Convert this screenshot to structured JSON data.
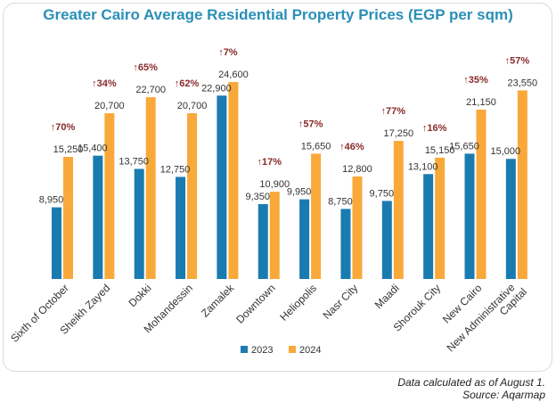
{
  "chart_data": {
    "type": "bar",
    "title": "Greater Cairo Average Residential Property Prices (EGP per sqm)",
    "categories": [
      "Sixth of October",
      "Sheikh Zayed",
      "Dokki",
      "Mohandessin",
      "Zamalek",
      "Downtown",
      "Heliopolis",
      "Nasr City",
      "Maadi",
      "Shorouk City",
      "New Cairo",
      "New Administrative Capital"
    ],
    "series": [
      {
        "name": "2023",
        "color": "#1a7bb0",
        "values": [
          8950,
          15400,
          13750,
          12750,
          22900,
          9350,
          9950,
          8750,
          9750,
          13100,
          15650,
          15000
        ]
      },
      {
        "name": "2024",
        "color": "#f9a93a",
        "values": [
          15250,
          20700,
          22700,
          20700,
          24600,
          10900,
          15650,
          12800,
          17250,
          15150,
          21150,
          23550
        ]
      }
    ],
    "value_labels": {
      "2023": [
        "8,950",
        "15,400",
        "13,750",
        "12,750",
        "22,900",
        "9,350",
        "9,950",
        "8,750",
        "9,750",
        "13,100",
        "15,650",
        "15,000"
      ],
      "2024": [
        "15,250",
        "20,700",
        "22,700",
        "20,700",
        "24,600",
        "10,900",
        "15,650",
        "12,800",
        "17,250",
        "15,150",
        "21,150",
        "23,550"
      ]
    },
    "changes": [
      "↑70%",
      "↑34%",
      "↑65%",
      "↑62%",
      "↑7%",
      "↑17%",
      "↑57%",
      "↑46%",
      "↑77%",
      "↑16%",
      "↑35%",
      "↑57%"
    ],
    "change_color": "#8a2a2a",
    "ylim": [
      0,
      24600
    ],
    "grid": false,
    "legend_position": "bottom-center"
  },
  "footnote": {
    "line1": "Data calculated as of August 1.",
    "line2": "Source: Aqarmap"
  }
}
